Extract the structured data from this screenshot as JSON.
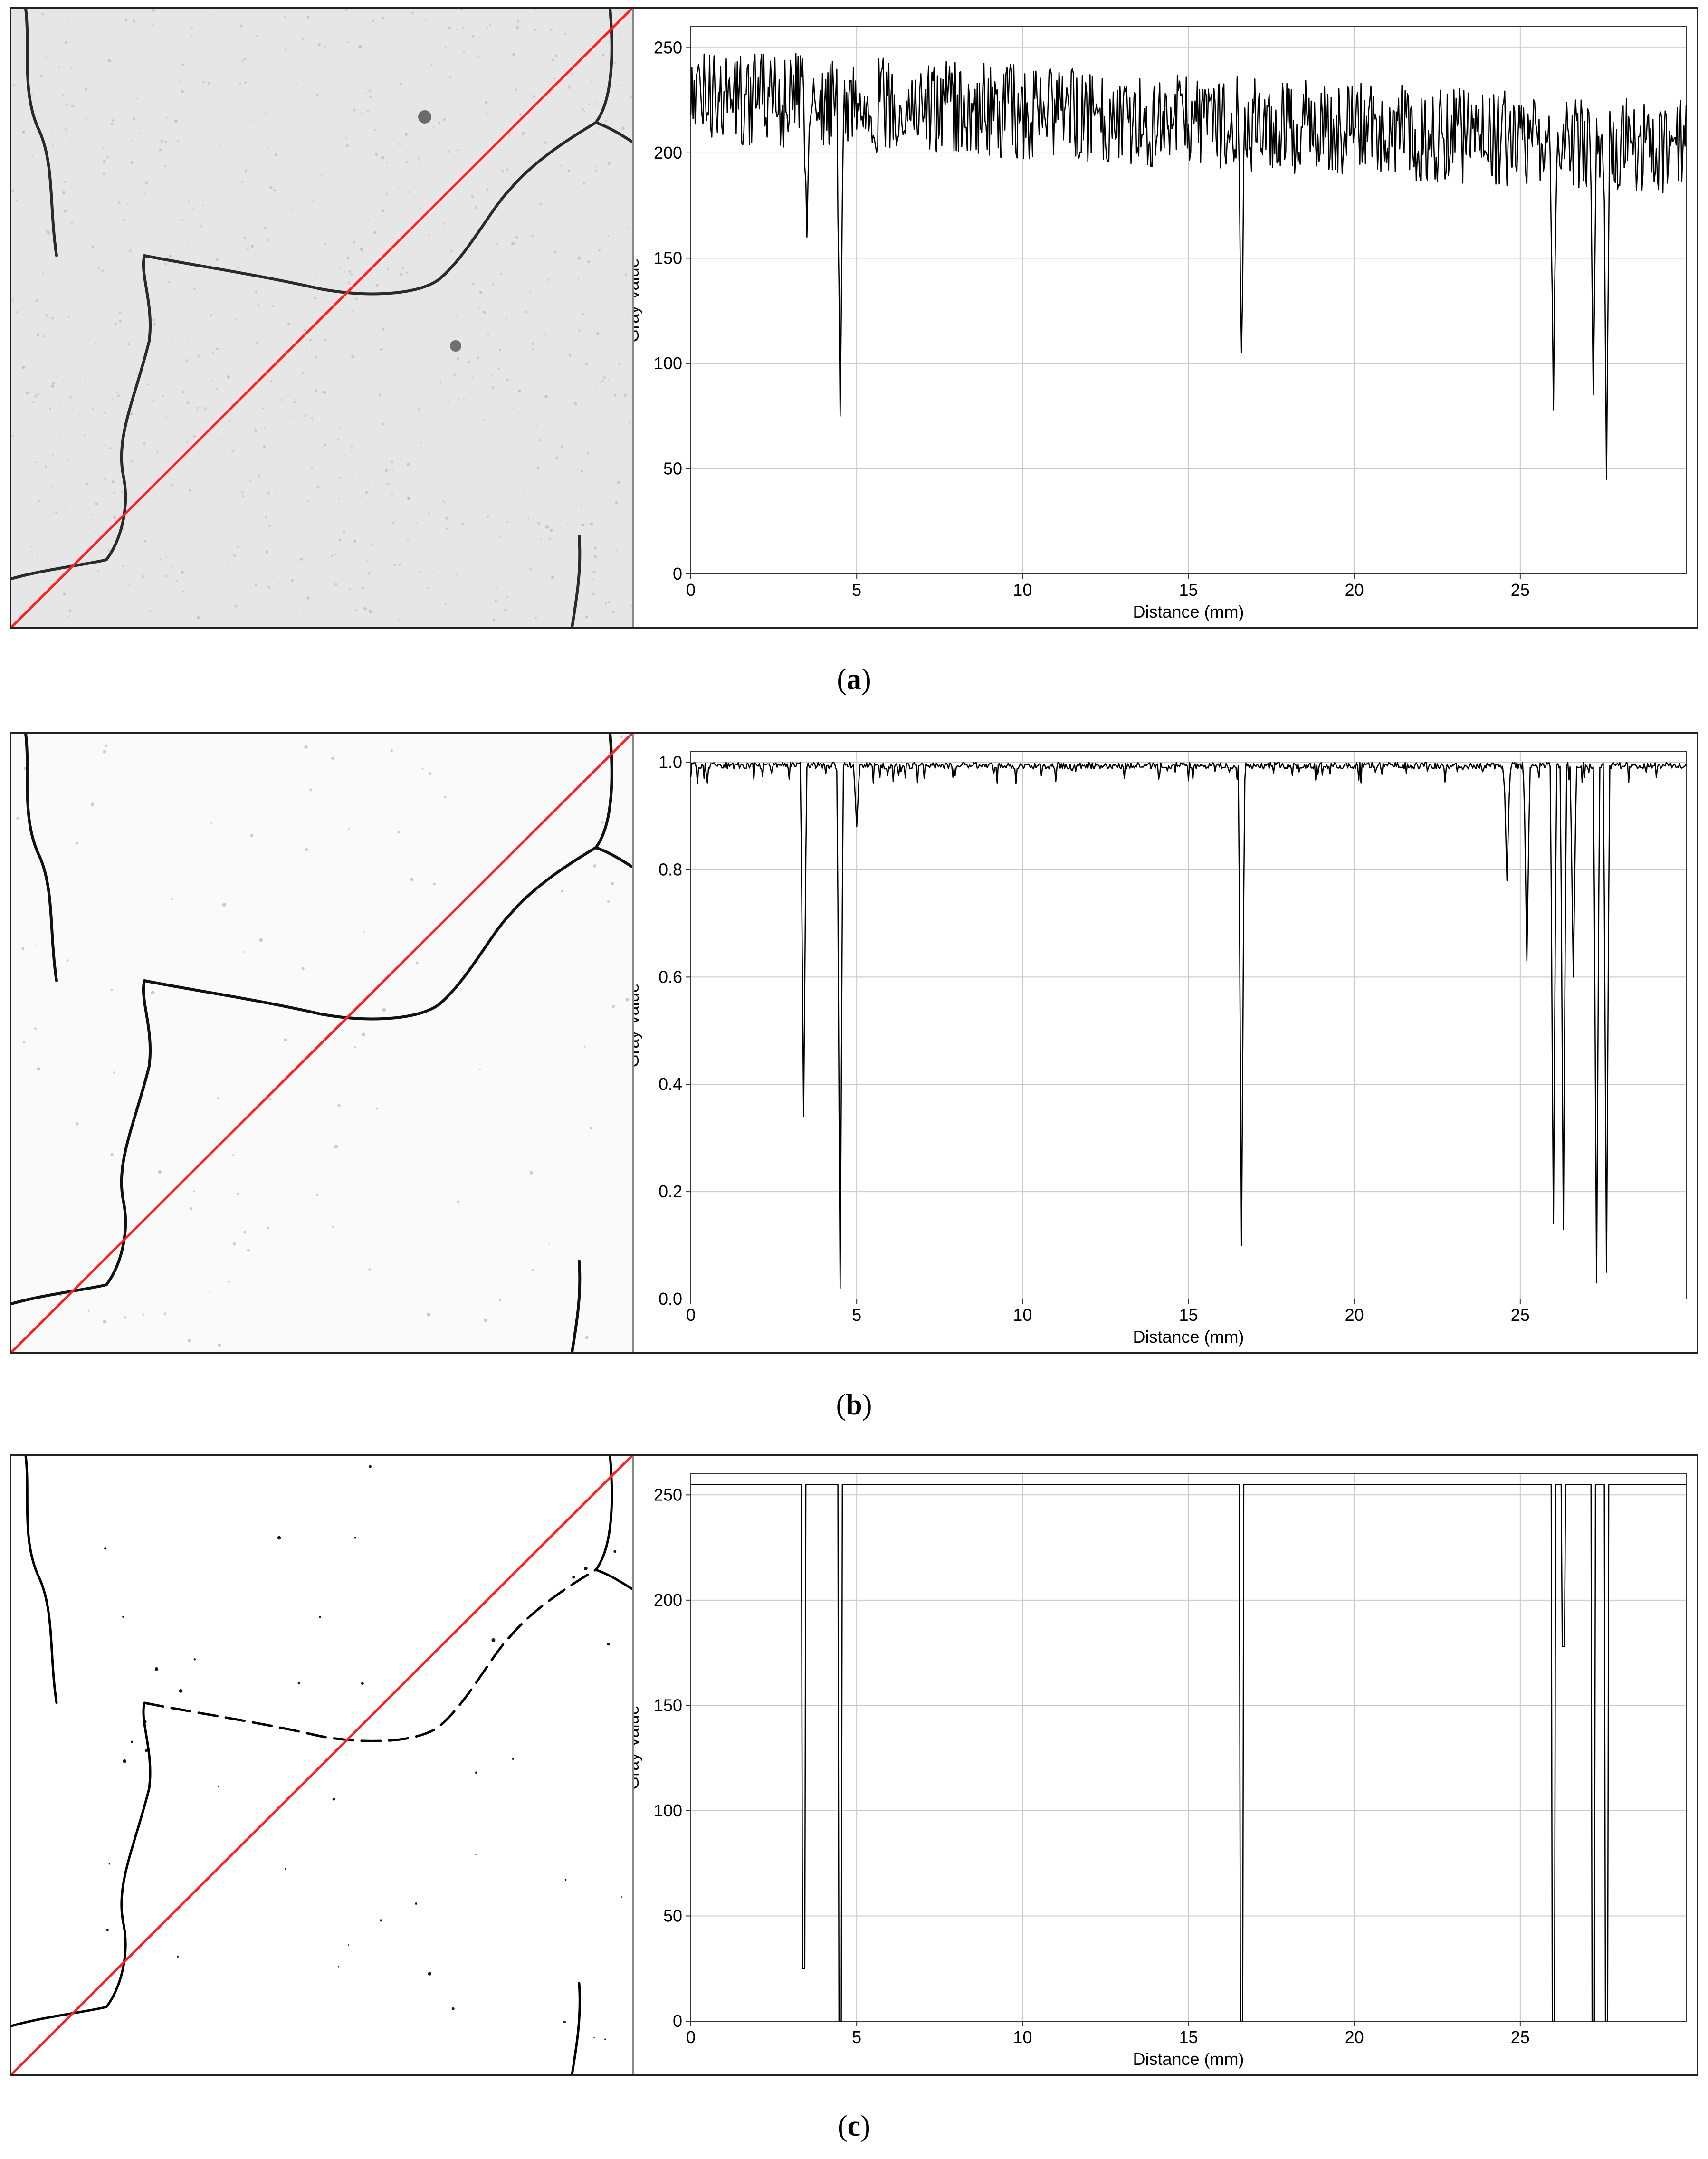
{
  "panels": [
    {
      "id": "a",
      "label": "a",
      "photo": {
        "style": "grayscale-texture",
        "colors": {
          "background": "#e6e6e6",
          "crack": "#2a2a2a",
          "line": "#ff2020"
        }
      },
      "chart_data": {
        "type": "line",
        "xlabel": "Distance (mm)",
        "ylabel": "Gray Value",
        "xlim": [
          0,
          30
        ],
        "ylim": [
          0,
          260
        ],
        "xticks": [
          0,
          5,
          10,
          15,
          20,
          25
        ],
        "yticks": [
          0,
          50,
          100,
          150,
          200,
          250
        ],
        "grid": true,
        "profile": "noisy",
        "dips": [
          {
            "x": 3.5,
            "y": 160
          },
          {
            "x": 4.5,
            "y": 75
          },
          {
            "x": 16.6,
            "y": 105
          },
          {
            "x": 26.0,
            "y": 78
          },
          {
            "x": 27.2,
            "y": 85
          },
          {
            "x": 27.6,
            "y": 45
          }
        ],
        "baseline_range": [
          200,
          255
        ]
      }
    },
    {
      "id": "b",
      "label": "b",
      "photo": {
        "style": "enhanced",
        "colors": {
          "background": "#fafafa",
          "crack": "#111111",
          "line": "#ff2020"
        }
      },
      "chart_data": {
        "type": "line",
        "xlabel": "Distance (mm)",
        "ylabel": "Gray Value",
        "xlim": [
          0,
          30
        ],
        "ylim": [
          0,
          1.02
        ],
        "xticks": [
          0,
          5,
          10,
          15,
          20,
          25
        ],
        "yticks": [
          0.0,
          0.2,
          0.4,
          0.6,
          0.8,
          1.0
        ],
        "ytick_labels": [
          "0.0",
          "0.2",
          "0.4",
          "0.6",
          "0.8",
          "1.0"
        ],
        "grid": true,
        "profile": "mostly-flat",
        "dips": [
          {
            "x": 3.4,
            "y": 0.34
          },
          {
            "x": 4.5,
            "y": 0.02
          },
          {
            "x": 5.0,
            "y": 0.88
          },
          {
            "x": 16.6,
            "y": 0.1
          },
          {
            "x": 24.6,
            "y": 0.78
          },
          {
            "x": 25.2,
            "y": 0.63
          },
          {
            "x": 26.0,
            "y": 0.14
          },
          {
            "x": 26.3,
            "y": 0.13
          },
          {
            "x": 26.6,
            "y": 0.6
          },
          {
            "x": 27.3,
            "y": 0.03
          },
          {
            "x": 27.6,
            "y": 0.05
          }
        ],
        "baseline_range": [
          0.96,
          1.0
        ]
      }
    },
    {
      "id": "c",
      "label": "c",
      "photo": {
        "style": "binary",
        "colors": {
          "background": "#ffffff",
          "crack": "#000000",
          "line": "#ff2020"
        }
      },
      "chart_data": {
        "type": "line",
        "xlabel": "Distance (mm)",
        "ylabel": "Gray Value",
        "xlim": [
          0,
          30
        ],
        "ylim": [
          0,
          260
        ],
        "xticks": [
          0,
          5,
          10,
          15,
          20,
          25
        ],
        "yticks": [
          0,
          50,
          100,
          150,
          200,
          250
        ],
        "grid": true,
        "profile": "binary",
        "dips": [
          {
            "x": 3.4,
            "y": 25
          },
          {
            "x": 4.5,
            "y": 0
          },
          {
            "x": 16.6,
            "y": 0
          },
          {
            "x": 26.0,
            "y": 0
          },
          {
            "x": 26.3,
            "y": 178
          },
          {
            "x": 27.2,
            "y": 0
          },
          {
            "x": 27.6,
            "y": 0
          }
        ],
        "baseline_range": [
          255,
          255
        ]
      }
    }
  ]
}
